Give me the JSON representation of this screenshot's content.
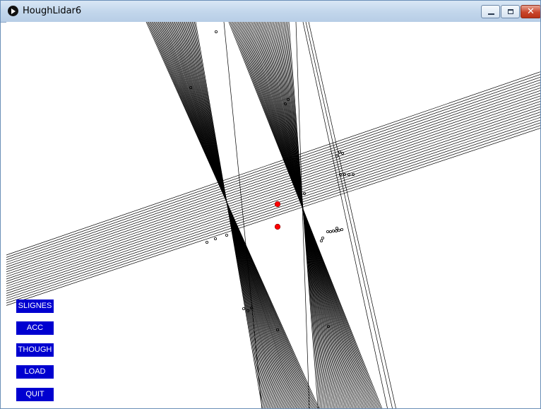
{
  "window": {
    "title": "HoughLidar6"
  },
  "titlebar": {
    "minimize_icon": "minimize-icon",
    "maximize_icon": "maximize-icon",
    "close_label": "✕",
    "close_color": "#c9452b"
  },
  "canvas": {
    "background": "#ffffff",
    "line_color": "#000000",
    "robot_marker_color": "#ff0000"
  },
  "buttons": [
    {
      "label": "SLIGNES",
      "name": "slignes-button"
    },
    {
      "label": "ACC",
      "name": "acc-button"
    },
    {
      "label": "THOUGH",
      "name": "though-button"
    },
    {
      "label": "LOAD",
      "name": "load-button"
    },
    {
      "label": "QUIT",
      "name": "quit-button"
    }
  ],
  "button_color": "#0000d0"
}
